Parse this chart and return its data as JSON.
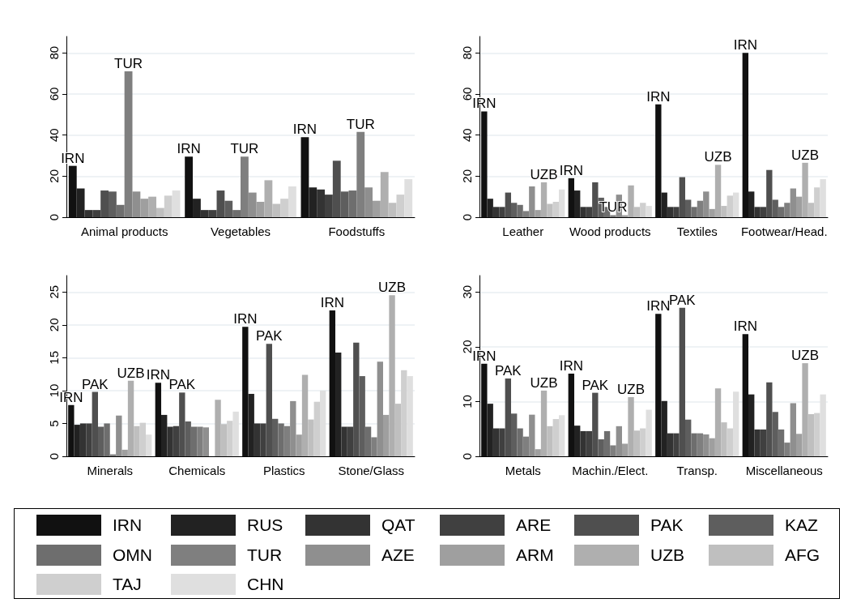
{
  "chart_data": [
    {
      "type": "bar",
      "categories": [
        "Animal products",
        "Vegetables",
        "Foodstuffs"
      ],
      "ylim": [
        0,
        88
      ],
      "yticks": [
        0,
        20,
        40,
        60,
        80
      ],
      "grid": "y",
      "legend": "bottom",
      "series": [
        {
          "name": "IRN",
          "color": "#111111",
          "values": [
            25,
            29.5,
            39
          ],
          "value_labels": [
            "IRN",
            "IRN",
            "IRN"
          ]
        },
        {
          "name": "RUS",
          "color": "#222222",
          "values": [
            14,
            9,
            14.5
          ]
        },
        {
          "name": "QAT",
          "color": "#333333",
          "values": [
            3.5,
            3.5,
            13.5
          ]
        },
        {
          "name": "ARE",
          "color": "#404040",
          "values": [
            3.5,
            3.5,
            11
          ]
        },
        {
          "name": "PAK",
          "color": "#4f4f4f",
          "values": [
            13,
            13,
            27.5
          ]
        },
        {
          "name": "KAZ",
          "color": "#5e5e5e",
          "values": [
            12.5,
            8,
            12.5
          ]
        },
        {
          "name": "OMN",
          "color": "#6e6e6e",
          "values": [
            6,
            3.5,
            13
          ]
        },
        {
          "name": "TUR",
          "color": "#7f7f7f",
          "values": [
            71,
            29.5,
            41.5
          ],
          "value_labels": [
            "TUR",
            "TUR",
            "TUR"
          ]
        },
        {
          "name": "AZE",
          "color": "#8f8f8f",
          "values": [
            12.5,
            12,
            14.5
          ]
        },
        {
          "name": "ARM",
          "color": "#9f9f9f",
          "values": [
            9,
            7.5,
            8
          ]
        },
        {
          "name": "UZB",
          "color": "#afafaf",
          "values": [
            10,
            18,
            22
          ]
        },
        {
          "name": "AFG",
          "color": "#bfbfbf",
          "values": [
            4.5,
            6.5,
            7
          ]
        },
        {
          "name": "TAJ",
          "color": "#cfcfcf",
          "values": [
            10.5,
            9,
            11
          ]
        },
        {
          "name": "CHN",
          "color": "#dfdfdf",
          "values": [
            13,
            15,
            18.5
          ]
        }
      ]
    },
    {
      "type": "bar",
      "categories": [
        "Leather",
        "Wood products",
        "Textiles",
        "Footwear/Head."
      ],
      "ylim": [
        0,
        88
      ],
      "yticks": [
        0,
        20,
        40,
        60,
        80
      ],
      "grid": "y",
      "series": [
        {
          "color": "#111111",
          "values": [
            51.5,
            19,
            55,
            80
          ],
          "value_labels": [
            "IRN",
            "IRN",
            "IRN",
            "IRN"
          ]
        },
        {
          "color": "#222222",
          "values": [
            9,
            13,
            12,
            12.5
          ]
        },
        {
          "color": "#333333",
          "values": [
            5,
            5,
            5,
            5
          ]
        },
        {
          "color": "#404040",
          "values": [
            5,
            5,
            5,
            5
          ]
        },
        {
          "color": "#4f4f4f",
          "values": [
            12,
            17,
            19.5,
            23
          ]
        },
        {
          "color": "#5e5e5e",
          "values": [
            7,
            9.5,
            8.5,
            8.5
          ]
        },
        {
          "color": "#6e6e6e",
          "values": [
            6,
            5,
            5,
            5
          ]
        },
        {
          "color": "#7f7f7f",
          "values": [
            3,
            1,
            8,
            7
          ],
          "value_labels": [
            null,
            "TUR",
            null,
            null
          ]
        },
        {
          "color": "#8f8f8f",
          "values": [
            15,
            11,
            12.5,
            14
          ]
        },
        {
          "color": "#9f9f9f",
          "values": [
            3.5,
            1,
            4,
            10
          ]
        },
        {
          "color": "#afafaf",
          "values": [
            17,
            15.5,
            25.5,
            26.5
          ],
          "value_labels": [
            "UZB",
            null,
            "UZB",
            "UZB"
          ]
        },
        {
          "color": "#bfbfbf",
          "values": [
            6.5,
            5,
            5.5,
            7
          ]
        },
        {
          "color": "#cfcfcf",
          "values": [
            7.5,
            7,
            10.5,
            14.5
          ]
        },
        {
          "color": "#dfdfdf",
          "values": [
            13.5,
            5.5,
            12,
            18.5
          ]
        }
      ]
    },
    {
      "type": "bar",
      "categories": [
        "Minerals",
        "Chemicals",
        "Plastics",
        "Stone/Glass"
      ],
      "ylim": [
        0,
        27.5
      ],
      "yticks": [
        0,
        5,
        10,
        15,
        20,
        25
      ],
      "grid": "y",
      "series": [
        {
          "color": "#111111",
          "values": [
            7.8,
            11.2,
            19.7,
            22.2
          ],
          "value_labels": [
            "IRN",
            "IRN",
            "IRN",
            "IRN"
          ]
        },
        {
          "color": "#222222",
          "values": [
            4.8,
            6.3,
            9.5,
            15.8
          ]
        },
        {
          "color": "#333333",
          "values": [
            5,
            4.5,
            5,
            4.5
          ]
        },
        {
          "color": "#404040",
          "values": [
            5,
            4.6,
            5,
            4.5
          ]
        },
        {
          "color": "#4f4f4f",
          "values": [
            9.8,
            9.7,
            17.1,
            17.3
          ],
          "value_labels": [
            "PAK",
            "PAK",
            "PAK",
            null
          ]
        },
        {
          "color": "#5e5e5e",
          "values": [
            4.5,
            5.3,
            5.7,
            12.2
          ]
        },
        {
          "color": "#6e6e6e",
          "values": [
            5,
            4.5,
            5,
            4.5
          ]
        },
        {
          "color": "#7f7f7f",
          "values": [
            0.3,
            4.5,
            4.6,
            2.9
          ]
        },
        {
          "color": "#8f8f8f",
          "values": [
            6.2,
            4.4,
            8.4,
            14.4
          ]
        },
        {
          "color": "#9f9f9f",
          "values": [
            1,
            0,
            3.3,
            6.3
          ]
        },
        {
          "color": "#afafaf",
          "values": [
            11.5,
            8.6,
            12.4,
            24.5
          ],
          "value_labels": [
            "UZB",
            null,
            null,
            "UZB"
          ]
        },
        {
          "color": "#bfbfbf",
          "values": [
            4.6,
            4.9,
            5.6,
            8
          ]
        },
        {
          "color": "#cfcfcf",
          "values": [
            5.1,
            5.4,
            8.3,
            13.1
          ]
        },
        {
          "color": "#dfdfdf",
          "values": [
            3.3,
            6.8,
            10,
            12.2
          ]
        }
      ]
    },
    {
      "type": "bar",
      "categories": [
        "Metals",
        "Machin./Elect.",
        "Transp.",
        "Miscellaneous"
      ],
      "ylim": [
        0,
        33
      ],
      "yticks": [
        0,
        10,
        20,
        30
      ],
      "grid": "y",
      "series": [
        {
          "color": "#111111",
          "values": [
            16.9,
            15.1,
            26,
            22.3
          ],
          "value_labels": [
            "IRN",
            "IRN",
            "IRN",
            "IRN"
          ]
        },
        {
          "color": "#222222",
          "values": [
            9.6,
            5.6,
            10.1,
            11.3
          ]
        },
        {
          "color": "#333333",
          "values": [
            5.1,
            4.6,
            4.2,
            4.9
          ]
        },
        {
          "color": "#404040",
          "values": [
            5.1,
            4.6,
            4.2,
            4.9
          ]
        },
        {
          "color": "#4f4f4f",
          "values": [
            14.2,
            11.6,
            27.1,
            13.5
          ],
          "value_labels": [
            "PAK",
            "PAK",
            "PAK",
            null
          ]
        },
        {
          "color": "#5e5e5e",
          "values": [
            7.8,
            3.1,
            6.7,
            8.1
          ]
        },
        {
          "color": "#6e6e6e",
          "values": [
            5.1,
            4.6,
            4.2,
            4.9
          ]
        },
        {
          "color": "#7f7f7f",
          "values": [
            3.6,
            2,
            4.2,
            2.5
          ]
        },
        {
          "color": "#8f8f8f",
          "values": [
            7.6,
            5.5,
            4,
            9.7
          ]
        },
        {
          "color": "#9f9f9f",
          "values": [
            1.3,
            2.3,
            3.3,
            4.1
          ]
        },
        {
          "color": "#afafaf",
          "values": [
            12,
            10.8,
            12.4,
            17
          ],
          "value_labels": [
            "UZB",
            "UZB",
            null,
            "UZB"
          ]
        },
        {
          "color": "#bfbfbf",
          "values": [
            5.5,
            4.7,
            6.2,
            7.7
          ]
        },
        {
          "color": "#cfcfcf",
          "values": [
            6.8,
            5.1,
            5.1,
            7.9
          ]
        },
        {
          "color": "#dfdfdf",
          "values": [
            7.5,
            8.5,
            11.8,
            11.3
          ]
        }
      ]
    }
  ]
}
